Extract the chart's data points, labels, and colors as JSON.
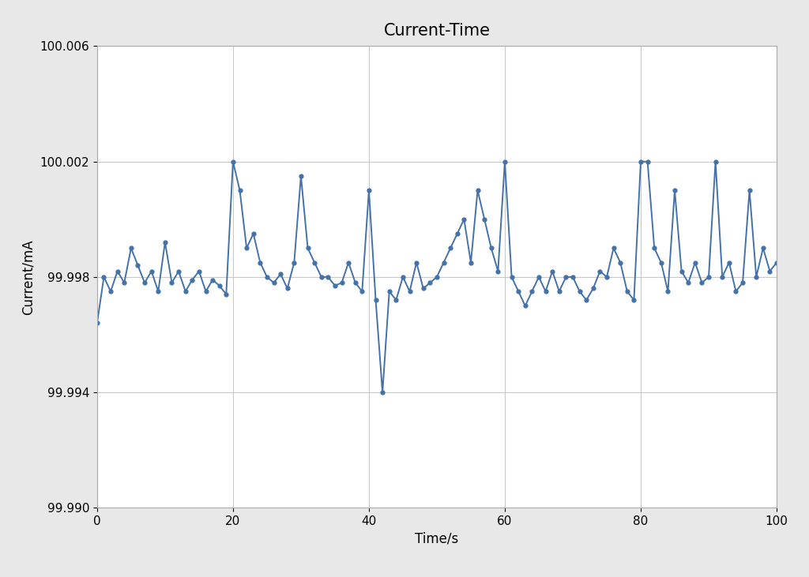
{
  "title": "Current-Time",
  "xlabel": "Time/s",
  "ylabel": "Current/mA",
  "xlim": [
    0,
    100
  ],
  "ylim": [
    99.99,
    100.006
  ],
  "yticks": [
    99.99,
    99.994,
    99.998,
    100.002,
    100.006
  ],
  "xticks": [
    0,
    20,
    40,
    60,
    80,
    100
  ],
  "line_color": "#4472a8",
  "marker": "o",
  "markersize": 3.5,
  "linewidth": 1.4,
  "plot_bg_color": "#ffffff",
  "fig_bg_color": "#e8e8e8",
  "title_fontsize": 15,
  "label_fontsize": 12,
  "tick_fontsize": 11,
  "x": [
    0,
    1,
    2,
    3,
    4,
    5,
    6,
    7,
    8,
    9,
    10,
    11,
    12,
    13,
    14,
    15,
    16,
    17,
    18,
    19,
    20,
    21,
    22,
    23,
    24,
    25,
    26,
    27,
    28,
    29,
    30,
    31,
    32,
    33,
    34,
    35,
    36,
    37,
    38,
    39,
    40,
    41,
    42,
    43,
    44,
    45,
    46,
    47,
    48,
    49,
    50,
    51,
    52,
    53,
    54,
    55,
    56,
    57,
    58,
    59,
    60,
    61,
    62,
    63,
    64,
    65,
    66,
    67,
    68,
    69,
    70,
    71,
    72,
    73,
    74,
    75,
    76,
    77,
    78,
    79,
    80,
    81,
    82,
    83,
    84,
    85,
    86,
    87,
    88,
    89,
    90,
    91,
    92,
    93,
    94,
    95,
    96,
    97,
    98,
    99,
    100
  ],
  "y": [
    99.9964,
    99.998,
    99.9975,
    99.9982,
    99.9978,
    99.999,
    99.9984,
    99.9978,
    99.9982,
    99.9975,
    99.9992,
    99.9978,
    99.9982,
    99.9975,
    99.9979,
    99.9982,
    99.9975,
    99.9979,
    99.9977,
    99.9974,
    100.002,
    100.001,
    99.999,
    99.9995,
    99.9985,
    99.998,
    99.9978,
    99.9981,
    99.9976,
    99.9985,
    100.0015,
    99.999,
    99.9985,
    99.998,
    99.998,
    99.9977,
    99.9978,
    99.9985,
    99.9978,
    99.9975,
    100.001,
    99.9972,
    99.994,
    99.9975,
    99.9972,
    99.998,
    99.9975,
    99.9985,
    99.9976,
    99.9978,
    99.998,
    99.9985,
    99.999,
    99.9995,
    100.0,
    99.9985,
    100.001,
    100.0,
    99.999,
    99.9982,
    100.002,
    99.998,
    99.9975,
    99.997,
    99.9975,
    99.998,
    99.9975,
    99.9982,
    99.9975,
    99.998,
    99.998,
    99.9975,
    99.9972,
    99.9976,
    99.9982,
    99.998,
    99.999,
    99.9985,
    99.9975,
    99.9972,
    100.002,
    100.002,
    99.999,
    99.9985,
    99.9975,
    100.001,
    99.9982,
    99.9978,
    99.9985,
    99.9978,
    99.998,
    100.002,
    99.998,
    99.9985,
    99.9975,
    99.9978,
    100.001,
    99.998,
    99.999,
    99.9982,
    99.9985
  ]
}
